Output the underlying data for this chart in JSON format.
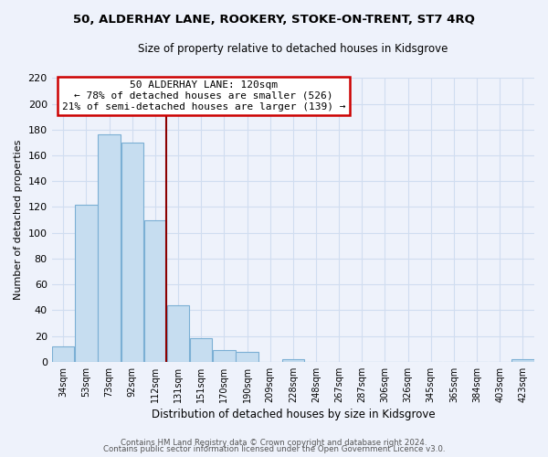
{
  "title": "50, ALDERHAY LANE, ROOKERY, STOKE-ON-TRENT, ST7 4RQ",
  "subtitle": "Size of property relative to detached houses in Kidsgrove",
  "xlabel": "Distribution of detached houses by size in Kidsgrove",
  "ylabel": "Number of detached properties",
  "bin_labels": [
    "34sqm",
    "53sqm",
    "73sqm",
    "92sqm",
    "112sqm",
    "131sqm",
    "151sqm",
    "170sqm",
    "190sqm",
    "209sqm",
    "228sqm",
    "248sqm",
    "267sqm",
    "287sqm",
    "306sqm",
    "326sqm",
    "345sqm",
    "365sqm",
    "384sqm",
    "403sqm",
    "423sqm"
  ],
  "bar_heights": [
    12,
    122,
    176,
    170,
    110,
    44,
    18,
    9,
    8,
    0,
    2,
    0,
    0,
    0,
    0,
    0,
    0,
    0,
    0,
    0,
    2
  ],
  "bar_color": "#c6ddf0",
  "bar_edge_color": "#7bafd4",
  "marker_line_color": "#8b0000",
  "annotation_title": "50 ALDERHAY LANE: 120sqm",
  "annotation_line1": "← 78% of detached houses are smaller (526)",
  "annotation_line2": "21% of semi-detached houses are larger (139) →",
  "annotation_box_color": "#ffffff",
  "annotation_box_edge": "#cc0000",
  "ylim": [
    0,
    220
  ],
  "yticks": [
    0,
    20,
    40,
    60,
    80,
    100,
    120,
    140,
    160,
    180,
    200,
    220
  ],
  "footer1": "Contains HM Land Registry data © Crown copyright and database right 2024.",
  "footer2": "Contains public sector information licensed under the Open Government Licence v3.0.",
  "background_color": "#eef2fb",
  "grid_color": "#d0ddf0"
}
